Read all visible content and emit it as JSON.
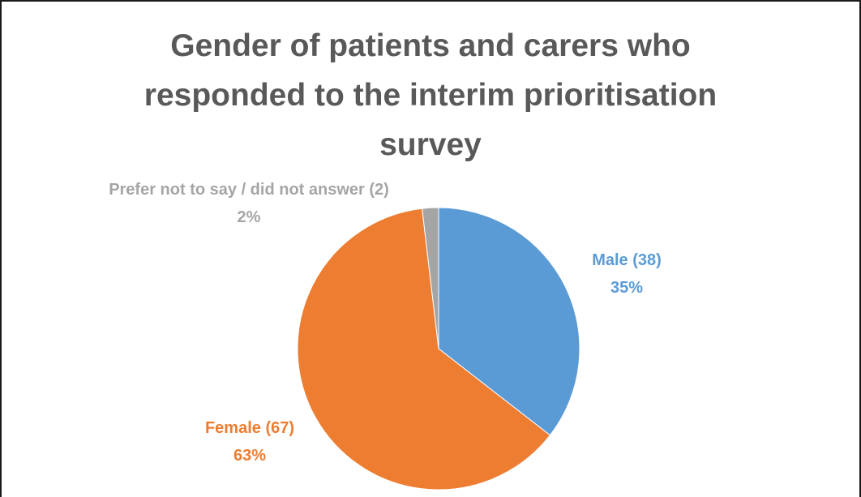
{
  "chart_data": {
    "type": "pie",
    "title_lines": [
      "Gender of patients and carers who",
      "responded to the interim prioritisation",
      "survey"
    ],
    "start_angle_deg": 0,
    "direction": "clockwise",
    "slices": [
      {
        "label": "Male (38)",
        "percent_label": "35%",
        "count": 38,
        "color": "#5b9bd5"
      },
      {
        "label": "Female (67)",
        "percent_label": "63%",
        "count": 67,
        "color": "#ed7d31"
      },
      {
        "label": "Prefer not to say / did not answer (2)",
        "percent_label": "2%",
        "count": 2,
        "color": "#a5a5a5"
      }
    ],
    "legend": "none"
  }
}
